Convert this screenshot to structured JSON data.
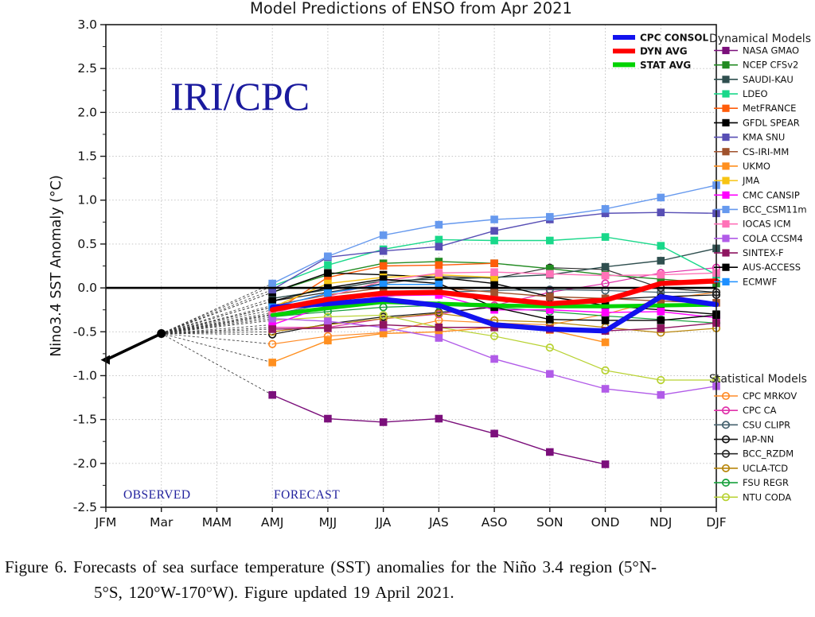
{
  "figure": {
    "title": "Model Predictions of ENSO from Apr 2021",
    "y_axis_label": "Nino3.4 SST Anomaly (°C)",
    "watermark": "IRI/CPC",
    "observed_label": "OBSERVED",
    "forecast_label": "FORECAST",
    "watermark_color": "#1a1a9e",
    "annotation_color": "#22229e"
  },
  "caption": {
    "line1": "Figure 6. Forecasts of sea surface temperature (SST) anomalies for the Niño 3.4 region (5°N-",
    "line2": "5°S, 120°W-170°W).  Figure updated 19 April 2021."
  },
  "chart_data": {
    "type": "line",
    "title": "Model Predictions of ENSO from Apr 2021",
    "xlabel": "",
    "ylabel": "Nino3.4 SST Anomaly (°C)",
    "ylim": [
      -2.5,
      3.0
    ],
    "y_ticks": [
      3.0,
      2.5,
      2.0,
      1.5,
      1.0,
      0.5,
      0.0,
      -0.5,
      -1.0,
      -1.5,
      -2.0,
      -2.5
    ],
    "grid": "dotted",
    "x_categories": [
      "JFM",
      "Mar",
      "MAM",
      "AMJ",
      "MJJ",
      "JJA",
      "JAS",
      "ASO",
      "SON",
      "OND",
      "NDJ",
      "DJF"
    ],
    "forecast_start_index": 3,
    "observed": {
      "label": "OBSERVED",
      "color": "#000000",
      "x": [
        "JFM",
        "Mar"
      ],
      "values": [
        -0.82,
        -0.52
      ]
    },
    "averages": [
      {
        "name": "CPC CONSOL",
        "color": "#1212ee",
        "values": [
          -0.22,
          -0.18,
          -0.13,
          -0.2,
          -0.42,
          -0.47,
          -0.49,
          -0.1,
          -0.19
        ]
      },
      {
        "name": "DYN AVG",
        "color": "#ff0000",
        "values": [
          -0.25,
          -0.13,
          -0.06,
          -0.05,
          -0.12,
          -0.18,
          -0.14,
          0.05,
          0.08
        ]
      },
      {
        "name": "STAT AVG",
        "color": "#00d300",
        "values": [
          -0.31,
          -0.23,
          -0.16,
          -0.18,
          -0.2,
          -0.21,
          -0.21,
          -0.2,
          -0.19
        ]
      }
    ],
    "dynamical_models": {
      "header": "Dynamical Models",
      "marker": "filled-square",
      "series": [
        {
          "name": "NASA GMAO",
          "color": "#7b0f7b",
          "values": [
            -1.22,
            -1.49,
            -1.53,
            -1.49,
            -1.66,
            -1.87,
            -2.01,
            null,
            null
          ]
        },
        {
          "name": "NCEP CFSv2",
          "color": "#228b22",
          "values": [
            -0.05,
            0.15,
            0.28,
            0.3,
            0.28,
            0.22,
            0.15,
            0.1,
            0.05
          ]
        },
        {
          "name": "SAUDI-KAU",
          "color": "#2f4f4f",
          "values": [
            -0.12,
            -0.02,
            0.08,
            0.1,
            0.12,
            0.15,
            0.24,
            0.31,
            0.45
          ]
        },
        {
          "name": "LDEO",
          "color": "#19d88a",
          "values": [
            0.02,
            0.26,
            0.44,
            0.55,
            0.54,
            0.54,
            0.58,
            0.48,
            0.15
          ]
        },
        {
          "name": "MetFRANCE",
          "color": "#ff5c0a",
          "values": [
            -0.28,
            0.12,
            0.25,
            0.26,
            0.28,
            null,
            null,
            null,
            null
          ]
        },
        {
          "name": "GFDL SPEAR",
          "color": "#000000",
          "values": [
            -0.05,
            0.17,
            0.15,
            0.12,
            0.05,
            -0.1,
            -0.2,
            -0.25,
            -0.3
          ]
        },
        {
          "name": "KMA SNU",
          "color": "#584fb5",
          "values": [
            -0.02,
            0.35,
            0.42,
            0.47,
            0.65,
            0.78,
            0.85,
            0.86,
            0.85
          ]
        },
        {
          "name": "CS-IRI-MM",
          "color": "#a0522d",
          "values": [
            -0.2,
            -0.08,
            0.0,
            0.0,
            -0.05,
            -0.1,
            -0.12,
            -0.15,
            -0.17
          ]
        },
        {
          "name": "UKMO",
          "color": "#ff8f1f",
          "values": [
            -0.85,
            -0.6,
            -0.52,
            -0.5,
            -0.45,
            -0.48,
            -0.62,
            null,
            null
          ]
        },
        {
          "name": "JMA",
          "color": "#f7c413",
          "values": [
            -0.22,
            0.05,
            0.12,
            0.15,
            0.12,
            null,
            null,
            null,
            null
          ]
        },
        {
          "name": "CMC CANSIP",
          "color": "#ff00ff",
          "values": [
            -0.42,
            -0.2,
            -0.09,
            -0.08,
            -0.25,
            -0.25,
            -0.28,
            -0.27,
            -0.34
          ]
        },
        {
          "name": "BCC_CSM11m",
          "color": "#6699ee",
          "values": [
            0.05,
            0.36,
            0.6,
            0.72,
            0.78,
            0.81,
            0.9,
            1.03,
            1.17
          ]
        },
        {
          "name": "IOCAS ICM",
          "color": "#ff72b8",
          "values": [
            -0.3,
            -0.1,
            0.08,
            0.17,
            0.18,
            0.16,
            0.14,
            0.15,
            0.17
          ]
        },
        {
          "name": "COLA CCSM4",
          "color": "#b15be8",
          "values": [
            -0.35,
            -0.38,
            -0.45,
            -0.57,
            -0.81,
            -0.98,
            -1.15,
            -1.22,
            -1.12
          ]
        },
        {
          "name": "SINTEX-F",
          "color": "#8e1560",
          "values": [
            -0.47,
            -0.46,
            -0.42,
            -0.45,
            -0.45,
            -0.47,
            -0.49,
            -0.46,
            -0.4
          ]
        },
        {
          "name": "AUS-ACCESS",
          "color": "#000000",
          "values": [
            -0.15,
            0.0,
            0.1,
            0.05,
            -0.22,
            -0.36,
            -0.37,
            -0.37,
            -0.31
          ]
        },
        {
          "name": "ECMWF",
          "color": "#1e90ff",
          "values": [
            -0.22,
            -0.06,
            0.04,
            0.04,
            null,
            null,
            null,
            null,
            null
          ]
        }
      ]
    },
    "statistical_models": {
      "header": "Statistical Models",
      "marker": "open-circle",
      "series": [
        {
          "name": "CPC MRKOV",
          "color": "#ff8c28",
          "values": [
            -0.64,
            -0.55,
            -0.51,
            -0.37,
            -0.4,
            -0.42,
            -0.3,
            -0.13,
            -0.05
          ]
        },
        {
          "name": "CPC CA",
          "color": "#e032aa",
          "values": [
            -0.45,
            -0.45,
            -0.35,
            -0.3,
            -0.2,
            -0.05,
            0.05,
            0.17,
            0.23
          ]
        },
        {
          "name": "CSU CLIPR",
          "color": "#44616e",
          "values": [
            -0.3,
            -0.18,
            -0.1,
            -0.05,
            -0.03,
            -0.02,
            -0.03,
            -0.05,
            -0.05
          ]
        },
        {
          "name": "IAP-NN",
          "color": "#151515",
          "values": [
            -0.53,
            -0.41,
            -0.33,
            -0.28,
            -0.22,
            -0.18,
            -0.13,
            -0.1,
            -0.08
          ]
        },
        {
          "name": "BCC_RZDM",
          "color": "#2b2b2b",
          "values": [
            -0.15,
            -0.05,
            0.05,
            0.13,
            0.11,
            0.23,
            0.21,
            0.0,
            -0.05
          ]
        },
        {
          "name": "UCLA-TCD",
          "color": "#b8860b",
          "values": [
            -0.5,
            -0.42,
            -0.35,
            -0.29,
            -0.37,
            -0.39,
            -0.45,
            -0.51,
            -0.46
          ]
        },
        {
          "name": "FSU REGR",
          "color": "#17a03c",
          "values": [
            -0.33,
            -0.27,
            -0.22,
            -0.2,
            -0.22,
            -0.27,
            -0.32,
            -0.36,
            -0.4
          ]
        },
        {
          "name": "NTU CODA",
          "color": "#b8d232",
          "values": [
            -0.37,
            -0.33,
            -0.31,
            -0.45,
            -0.55,
            -0.68,
            -0.94,
            -1.05,
            -1.05
          ]
        }
      ]
    },
    "legend_position": {
      "averages": "top-right-inside",
      "models": "right-outside"
    }
  }
}
